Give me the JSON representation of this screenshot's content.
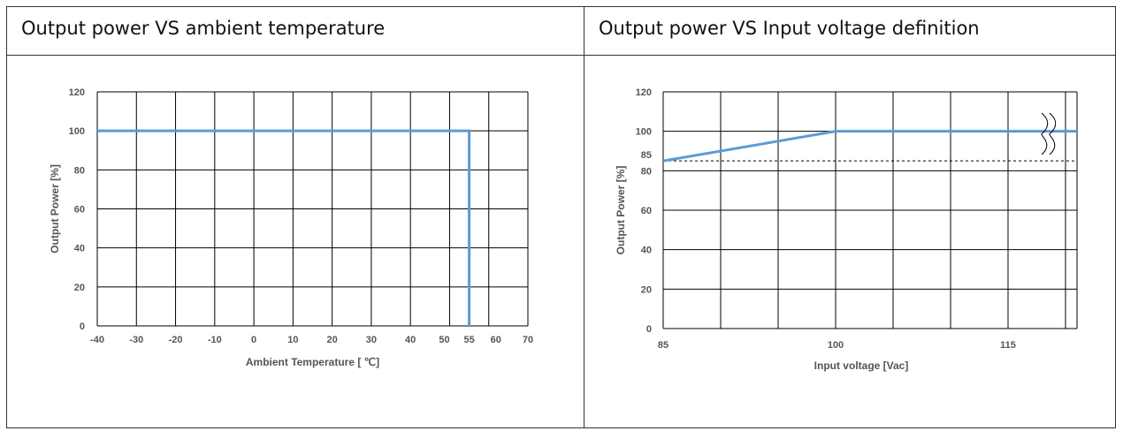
{
  "panels": [
    {
      "header": "Output power VS ambient temperature"
    },
    {
      "header": "Output power VS Input voltage definition"
    }
  ],
  "colors": {
    "series": "#5b9bd5",
    "grid": "#000000",
    "text": "#555555",
    "dashed": "#000000"
  },
  "chart_data": [
    {
      "type": "line",
      "title": "Output power VS ambient temperature",
      "xlabel": "Ambient Temperature [ ℃]",
      "ylabel": "Output Power [%]",
      "xlim": [
        -40,
        70
      ],
      "ylim": [
        0,
        120
      ],
      "xticks": [
        -40,
        -30,
        -20,
        -10,
        0,
        10,
        20,
        30,
        40,
        50,
        55,
        60,
        70
      ],
      "yticks": [
        0,
        20,
        40,
        60,
        80,
        100,
        120
      ],
      "grid": true,
      "series": [
        {
          "x": [
            -40,
            55,
            55
          ],
          "y": [
            100,
            100,
            0
          ]
        }
      ]
    },
    {
      "type": "line",
      "title": "Output power VS Input voltage definition",
      "xlabel": "Input voltage [Vac]",
      "ylabel": "Output Power [%]",
      "xlim": [
        85,
        121
      ],
      "ylim": [
        0,
        120
      ],
      "xticks": [
        85,
        100,
        115
      ],
      "yticks": [
        0,
        20,
        40,
        60,
        80,
        100,
        120
      ],
      "extra_yticks": [
        85
      ],
      "grid": true,
      "reference_line": {
        "y": 85,
        "style": "dashed"
      },
      "axis_break": "x-axis break symbol near 118 Vac",
      "series": [
        {
          "x": [
            85,
            100,
            121
          ],
          "y": [
            85,
            100,
            100
          ]
        }
      ]
    }
  ]
}
